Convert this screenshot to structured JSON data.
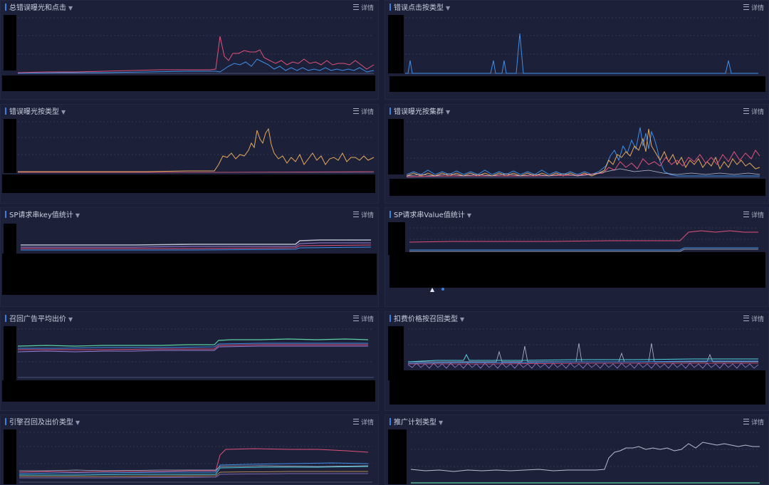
{
  "detail_label": "详情",
  "panels": [
    {
      "title": "总错误曝光和点击"
    },
    {
      "title": "错误点击按类型"
    },
    {
      "title": "错误曝光按类型"
    },
    {
      "title": "错误曝光按集群"
    },
    {
      "title": "SP请求串key值统计"
    },
    {
      "title": "SP请求串Value值统计"
    },
    {
      "title": "召回广告平均出价"
    },
    {
      "title": "扣费价格按召回类型"
    },
    {
      "title": "引擎召回及出价类型"
    },
    {
      "title": "推广计划类型"
    }
  ],
  "pager": {
    "prev_icon": "triangle-up-icon"
  },
  "colors": {
    "red": "#e0517a",
    "blue": "#3f8fe8",
    "orange": "#e8a85a",
    "purple": "#9b7fd8",
    "green": "#5ad3a0",
    "grey": "#b8bccf",
    "cyan": "#4fd0e0"
  }
}
